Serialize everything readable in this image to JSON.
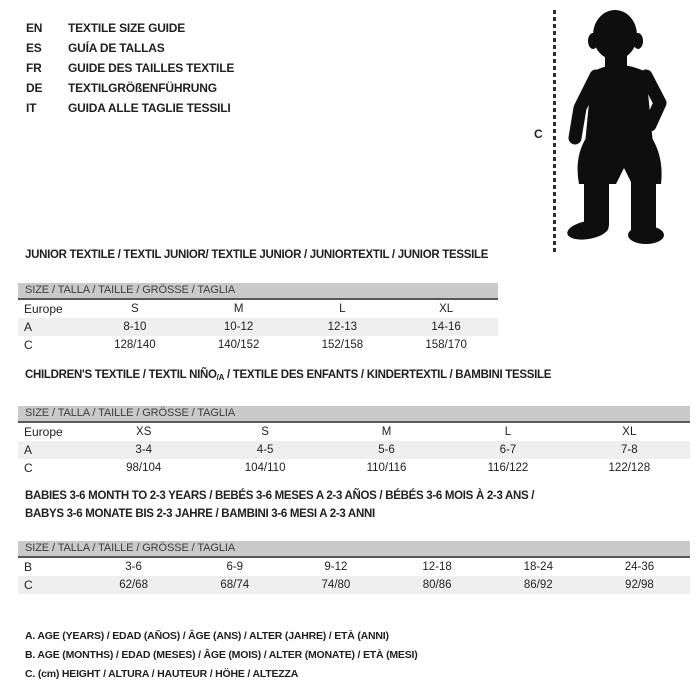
{
  "languages": [
    {
      "code": "EN",
      "label": "TEXTILE SIZE GUIDE"
    },
    {
      "code": "ES",
      "label": "GUÍA DE TALLAS"
    },
    {
      "code": "FR",
      "label": "GUIDE DES TAILLES TEXTILE"
    },
    {
      "code": "DE",
      "label": "TEXTILGRÖßENFÜHRUNG"
    },
    {
      "code": "IT",
      "label": "GUIDA ALLE TAGLIE TESSILI"
    }
  ],
  "figure": {
    "icon": "baby-silhouette",
    "measure_label": "C"
  },
  "tables": [
    {
      "title_segments": [
        [
          {
            "t": "JUNIOR TEXTILE / TEXTIL JUNIOR/ TEXTILE JUNIOR / JUNIORTEXTIL / JUNIOR TESSILE",
            "sub": false
          }
        ]
      ],
      "header": "SIZE / TALLA / TAILLE / GRÖSSE / TAGLIA",
      "rows": [
        {
          "label": "Europe",
          "cells": [
            "S",
            "M",
            "L",
            "XL"
          ]
        },
        {
          "label": "A",
          "cells": [
            "8-10",
            "10-12",
            "12-13",
            "14-16"
          ]
        },
        {
          "label": "C",
          "cells": [
            "128/140",
            "140/152",
            "152/158",
            "158/170"
          ]
        }
      ]
    },
    {
      "title_segments": [
        [
          {
            "t": "CHILDREN'S TEXTILE / TEXTIL NIÑO",
            "sub": false
          },
          {
            "t": "/A",
            "sub": true
          },
          {
            "t": " / TEXTILE DES ENFANTS / KINDERTEXTIL / BAMBINI TESSILE",
            "sub": false
          }
        ]
      ],
      "header": "SIZE / TALLA / TAILLE / GRÖSSE / TAGLIA",
      "rows": [
        {
          "label": "Europe",
          "cells": [
            "XS",
            "S",
            "M",
            "L",
            "XL"
          ]
        },
        {
          "label": "A",
          "cells": [
            "3-4",
            "4-5",
            "5-6",
            "6-7",
            "7-8"
          ]
        },
        {
          "label": "C",
          "cells": [
            "98/104",
            "104/110",
            "110/116",
            "116/122",
            "122/128"
          ]
        }
      ]
    },
    {
      "title_segments": [
        [
          {
            "t": "BABIES 3-6 MONTH TO 2-3 YEARS / BEBÉS 3-6 MESES A 2-3 AÑOS / BÉBÉS 3-6 MOIS À 2-3 ANS /",
            "sub": false
          }
        ],
        [
          {
            "t": "BABYS 3-6 MONATE BIS 2-3 JAHRE / BAMBINI 3-6 MESI A 2-3 ANNI",
            "sub": false
          }
        ]
      ],
      "header": "SIZE / TALLA / TAILLE / GRÖSSE / TAGLIA",
      "rows": [
        {
          "label": "B",
          "cells": [
            "3-6",
            "6-9",
            "9-12",
            "12-18",
            "18-24",
            "24-36"
          ]
        },
        {
          "label": "C",
          "cells": [
            "62/68",
            "68/74",
            "74/80",
            "80/86",
            "86/92",
            "92/98"
          ]
        }
      ]
    }
  ],
  "footnotes": [
    "A. AGE (YEARS) / EDAD (AÑOS) / ÂGE (ANS) / ALTER (JAHRE) / ETÀ (ANNI)",
    "B. AGE (MONTHS) / EDAD (MESES) / ÂGE (MOIS) / ALTER (MONATE) / ETÀ (MESI)",
    "C. (cm) HEIGHT / ALTURA / HAUTEUR / HÖHE / ALTEZZA"
  ],
  "colors": {
    "header_band_bg": "#c9c9c9",
    "stripe_row_bg": "#efefef",
    "band_border": "#58585a",
    "text": "#1f1f1f",
    "silhouette": "#0e0e0e"
  }
}
